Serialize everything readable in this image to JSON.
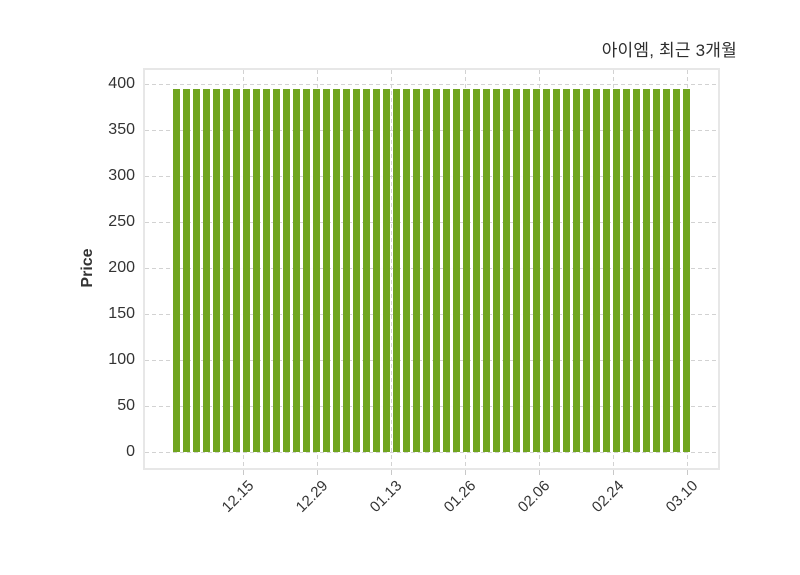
{
  "chart_data": {
    "type": "bar",
    "title": "아이엠, 최근 3개월",
    "xlabel": "",
    "ylabel": "Price",
    "ylim": [
      0,
      400
    ],
    "yticks": [
      0,
      50,
      100,
      150,
      200,
      250,
      300,
      350,
      400
    ],
    "xtick_labels": [
      "12.15",
      "12.29",
      "01.13",
      "01.26",
      "02.06",
      "02.24",
      "03.10"
    ],
    "grid": "dashed",
    "legend_position": "none",
    "series_name": "Price",
    "values": [
      395,
      395,
      395,
      395,
      395,
      395,
      395,
      395,
      395,
      395,
      395,
      395,
      395,
      395,
      395,
      395,
      395,
      395,
      395,
      395,
      395,
      395,
      395,
      395,
      395,
      395,
      395,
      395,
      395,
      395,
      395,
      395,
      395,
      395,
      395,
      395,
      395,
      395,
      395,
      395,
      395,
      395,
      395,
      395,
      395,
      395,
      395,
      395,
      395,
      395,
      395,
      395
    ]
  },
  "colors": {
    "bar": "#70a51f",
    "grid": "#d2d2d2",
    "plot_border": "#e7e7e7",
    "tick_text": "#333333",
    "title_text": "#2d2d2d",
    "background": "#ffffff"
  }
}
